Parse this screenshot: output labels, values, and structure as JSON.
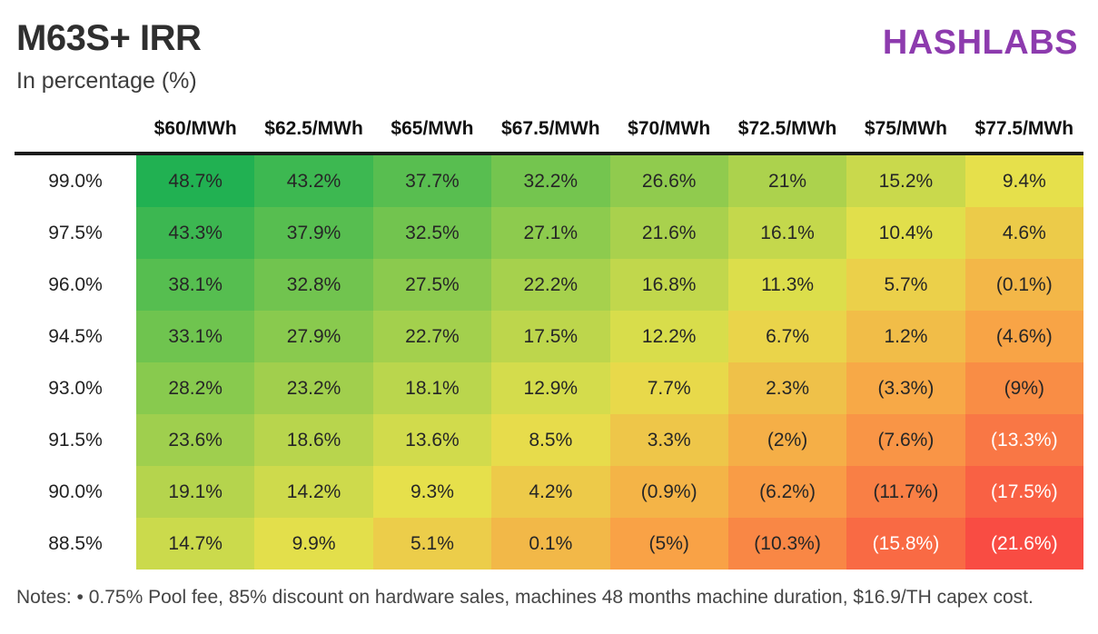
{
  "page": {
    "title": "M63S+ IRR",
    "subtitle": "In percentage (%)",
    "brand": "HASHLABS",
    "notes": "Notes: • 0.75% Pool fee, 85% discount on hardware sales, machines 48 months machine duration, $16.9/TH capex cost."
  },
  "colors": {
    "brand": "#8d3bae",
    "divider": "#1c1c1c",
    "cell_text_dark": "#262626",
    "cell_text_light": "#ffffff"
  },
  "chart_data": {
    "type": "heatmap",
    "title": "M63S+ IRR",
    "subtitle": "In percentage (%)",
    "legend_position": "none",
    "grid": false,
    "columns": [
      "$60/MWh",
      "$62.5/MWh",
      "$65/MWh",
      "$67.5/MWh",
      "$70/MWh",
      "$72.5/MWh",
      "$75/MWh",
      "$77.5/MWh"
    ],
    "rows": [
      "99.0%",
      "97.5%",
      "96.0%",
      "94.5%",
      "93.0%",
      "91.5%",
      "90.0%",
      "88.5%"
    ],
    "display": [
      [
        "48.7%",
        "43.2%",
        "37.7%",
        "32.2%",
        "26.6%",
        "21%",
        "15.2%",
        "9.4%"
      ],
      [
        "43.3%",
        "37.9%",
        "32.5%",
        "27.1%",
        "21.6%",
        "16.1%",
        "10.4%",
        "4.6%"
      ],
      [
        "38.1%",
        "32.8%",
        "27.5%",
        "22.2%",
        "16.8%",
        "11.3%",
        "5.7%",
        "(0.1%)"
      ],
      [
        "33.1%",
        "27.9%",
        "22.7%",
        "17.5%",
        "12.2%",
        "6.7%",
        "1.2%",
        "(4.6%)"
      ],
      [
        "28.2%",
        "23.2%",
        "18.1%",
        "12.9%",
        "7.7%",
        "2.3%",
        "(3.3%)",
        "(9%)"
      ],
      [
        "23.6%",
        "18.6%",
        "13.6%",
        "8.5%",
        "3.3%",
        "(2%)",
        "(7.6%)",
        "(13.3%)"
      ],
      [
        "19.1%",
        "14.2%",
        "9.3%",
        "4.2%",
        "(0.9%)",
        "(6.2%)",
        "(11.7%)",
        "(17.5%)"
      ],
      [
        "14.7%",
        "9.9%",
        "5.1%",
        "0.1%",
        "(5%)",
        "(10.3%)",
        "(15.8%)",
        "(21.6%)"
      ]
    ],
    "values": [
      [
        48.7,
        43.2,
        37.7,
        32.2,
        26.6,
        21.0,
        15.2,
        9.4
      ],
      [
        43.3,
        37.9,
        32.5,
        27.1,
        21.6,
        16.1,
        10.4,
        4.6
      ],
      [
        38.1,
        32.8,
        27.5,
        22.2,
        16.8,
        11.3,
        5.7,
        -0.1
      ],
      [
        33.1,
        27.9,
        22.7,
        17.5,
        12.2,
        6.7,
        1.2,
        -4.6
      ],
      [
        28.2,
        23.2,
        18.1,
        12.9,
        7.7,
        2.3,
        -3.3,
        -9.0
      ],
      [
        23.6,
        18.6,
        13.6,
        8.5,
        3.3,
        -2.0,
        -7.6,
        -13.3
      ],
      [
        19.1,
        14.2,
        9.3,
        4.2,
        -0.9,
        -6.2,
        -11.7,
        -17.5
      ],
      [
        14.7,
        9.9,
        5.1,
        0.1,
        -5.0,
        -10.3,
        -15.8,
        -21.6
      ]
    ],
    "value_range": [
      -21.6,
      48.7
    ],
    "colormap": {
      "stops": [
        [
          48.7,
          "#21b152"
        ],
        [
          9.4,
          "#e6e04b"
        ],
        [
          -5.0,
          "#f9a246"
        ],
        [
          -21.6,
          "#f94c43"
        ]
      ],
      "white_text_at_or_below": -13
    }
  }
}
